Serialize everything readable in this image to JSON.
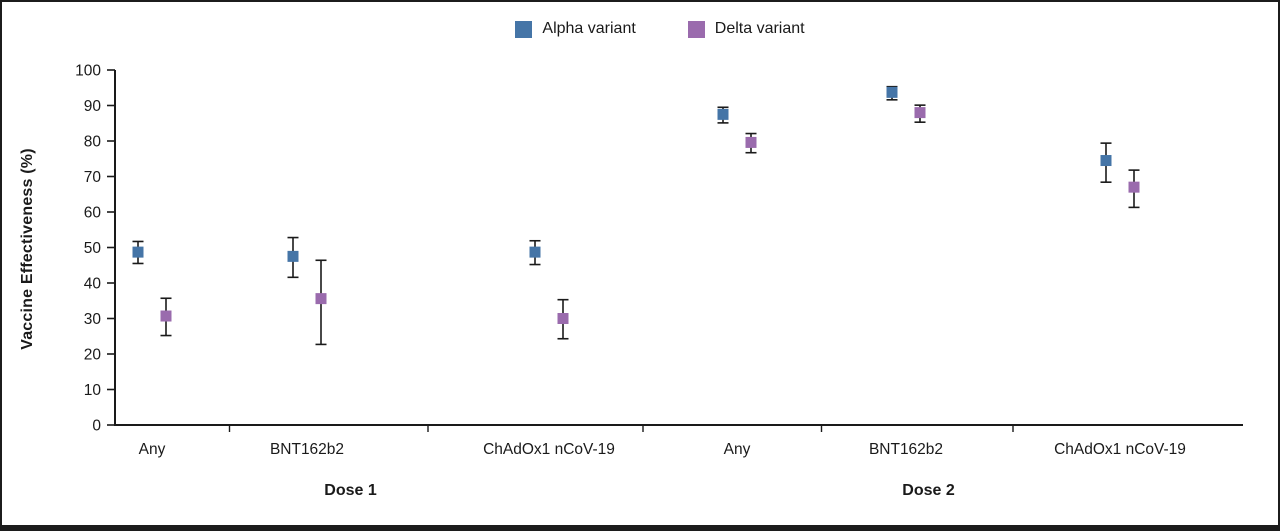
{
  "chart_data": {
    "type": "scatter",
    "title": "",
    "ylabel": "Vaccine Effectiveness (%)",
    "xlabel": "",
    "ylim": [
      0,
      100
    ],
    "yticks": [
      0,
      10,
      20,
      30,
      40,
      50,
      60,
      70,
      80,
      90,
      100
    ],
    "grid": false,
    "legend_position": "top-center",
    "group_labels": [
      "Dose 1",
      "Dose 2"
    ],
    "categories": [
      {
        "label": "Any",
        "group": "Dose 1"
      },
      {
        "label": "BNT162b2",
        "group": "Dose 1"
      },
      {
        "label": "ChAdOx1 nCoV-19",
        "group": "Dose 1"
      },
      {
        "label": "Any",
        "group": "Dose 2"
      },
      {
        "label": "BNT162b2",
        "group": "Dose 2"
      },
      {
        "label": "ChAdOx1 nCoV-19",
        "group": "Dose 2"
      }
    ],
    "series": [
      {
        "name": "Alpha variant",
        "color": "#4575a7",
        "marker": "square",
        "values": [
          48.7,
          47.5,
          48.7,
          87.5,
          93.7,
          74.5
        ],
        "ci_low": [
          45.5,
          41.6,
          45.2,
          85.1,
          91.6,
          68.4
        ],
        "ci_high": [
          51.7,
          52.8,
          51.9,
          89.5,
          95.3,
          79.4
        ]
      },
      {
        "name": "Delta variant",
        "color": "#9a6bad",
        "marker": "square",
        "values": [
          30.7,
          35.6,
          30.0,
          79.6,
          88.0,
          67.0
        ],
        "ci_low": [
          25.2,
          22.7,
          24.3,
          76.7,
          85.3,
          61.3
        ],
        "ci_high": [
          35.7,
          46.4,
          35.3,
          82.1,
          90.1,
          71.8
        ]
      }
    ],
    "error_bar_color": "#1a1a1a",
    "axis_color": "#1a1a1a"
  }
}
